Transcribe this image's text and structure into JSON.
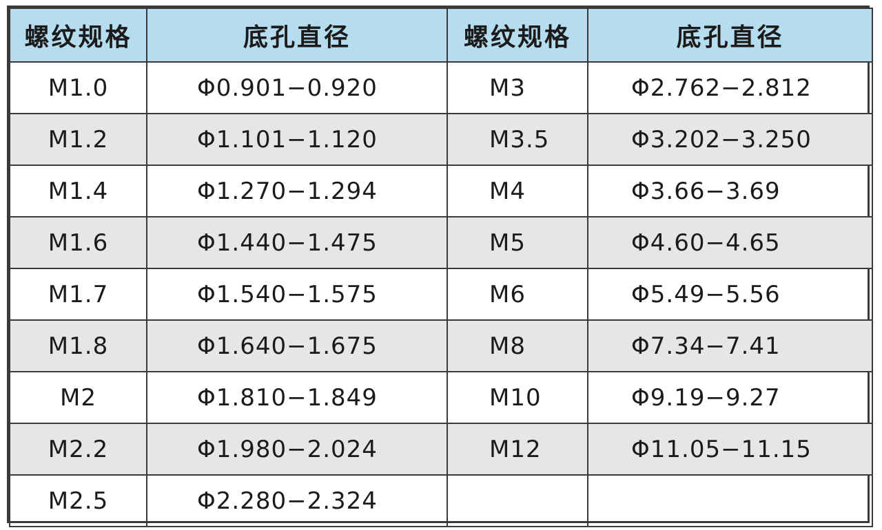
{
  "headers": {
    "spec": "螺纹规格",
    "diameter": "底孔直径"
  },
  "rows": [
    {
      "spec_left": "M1.0",
      "dia_left": "Φ0.901−0.920",
      "spec_right": "M3",
      "dia_right": "Φ2.762−2.812"
    },
    {
      "spec_left": "M1.2",
      "dia_left": "Φ1.101−1.120",
      "spec_right": "M3.5",
      "dia_right": "Φ3.202−3.250"
    },
    {
      "spec_left": "M1.4",
      "dia_left": "Φ1.270−1.294",
      "spec_right": "M4",
      "dia_right": "Φ3.66−3.69"
    },
    {
      "spec_left": "M1.6",
      "dia_left": "Φ1.440−1.475",
      "spec_right": "M5",
      "dia_right": "Φ4.60−4.65"
    },
    {
      "spec_left": "M1.7",
      "dia_left": "Φ1.540−1.575",
      "spec_right": "M6",
      "dia_right": "Φ5.49−5.56"
    },
    {
      "spec_left": "M1.8",
      "dia_left": "Φ1.640−1.675",
      "spec_right": "M8",
      "dia_right": "Φ7.34−7.41"
    },
    {
      "spec_left": "M2",
      "dia_left": "Φ1.810−1.849",
      "spec_right": "M10",
      "dia_right": "Φ9.19−9.27"
    },
    {
      "spec_left": "M2.2",
      "dia_left": "Φ1.980−2.024",
      "spec_right": "M12",
      "dia_right": "Φ11.05−11.15"
    },
    {
      "spec_left": "M2.5",
      "dia_left": "Φ2.280−2.324",
      "spec_right": "",
      "dia_right": ""
    }
  ],
  "colors": {
    "header_bg": "#b6dcef",
    "alt_row_bg": "#e6e6e6",
    "border": "#3a3a3a"
  }
}
